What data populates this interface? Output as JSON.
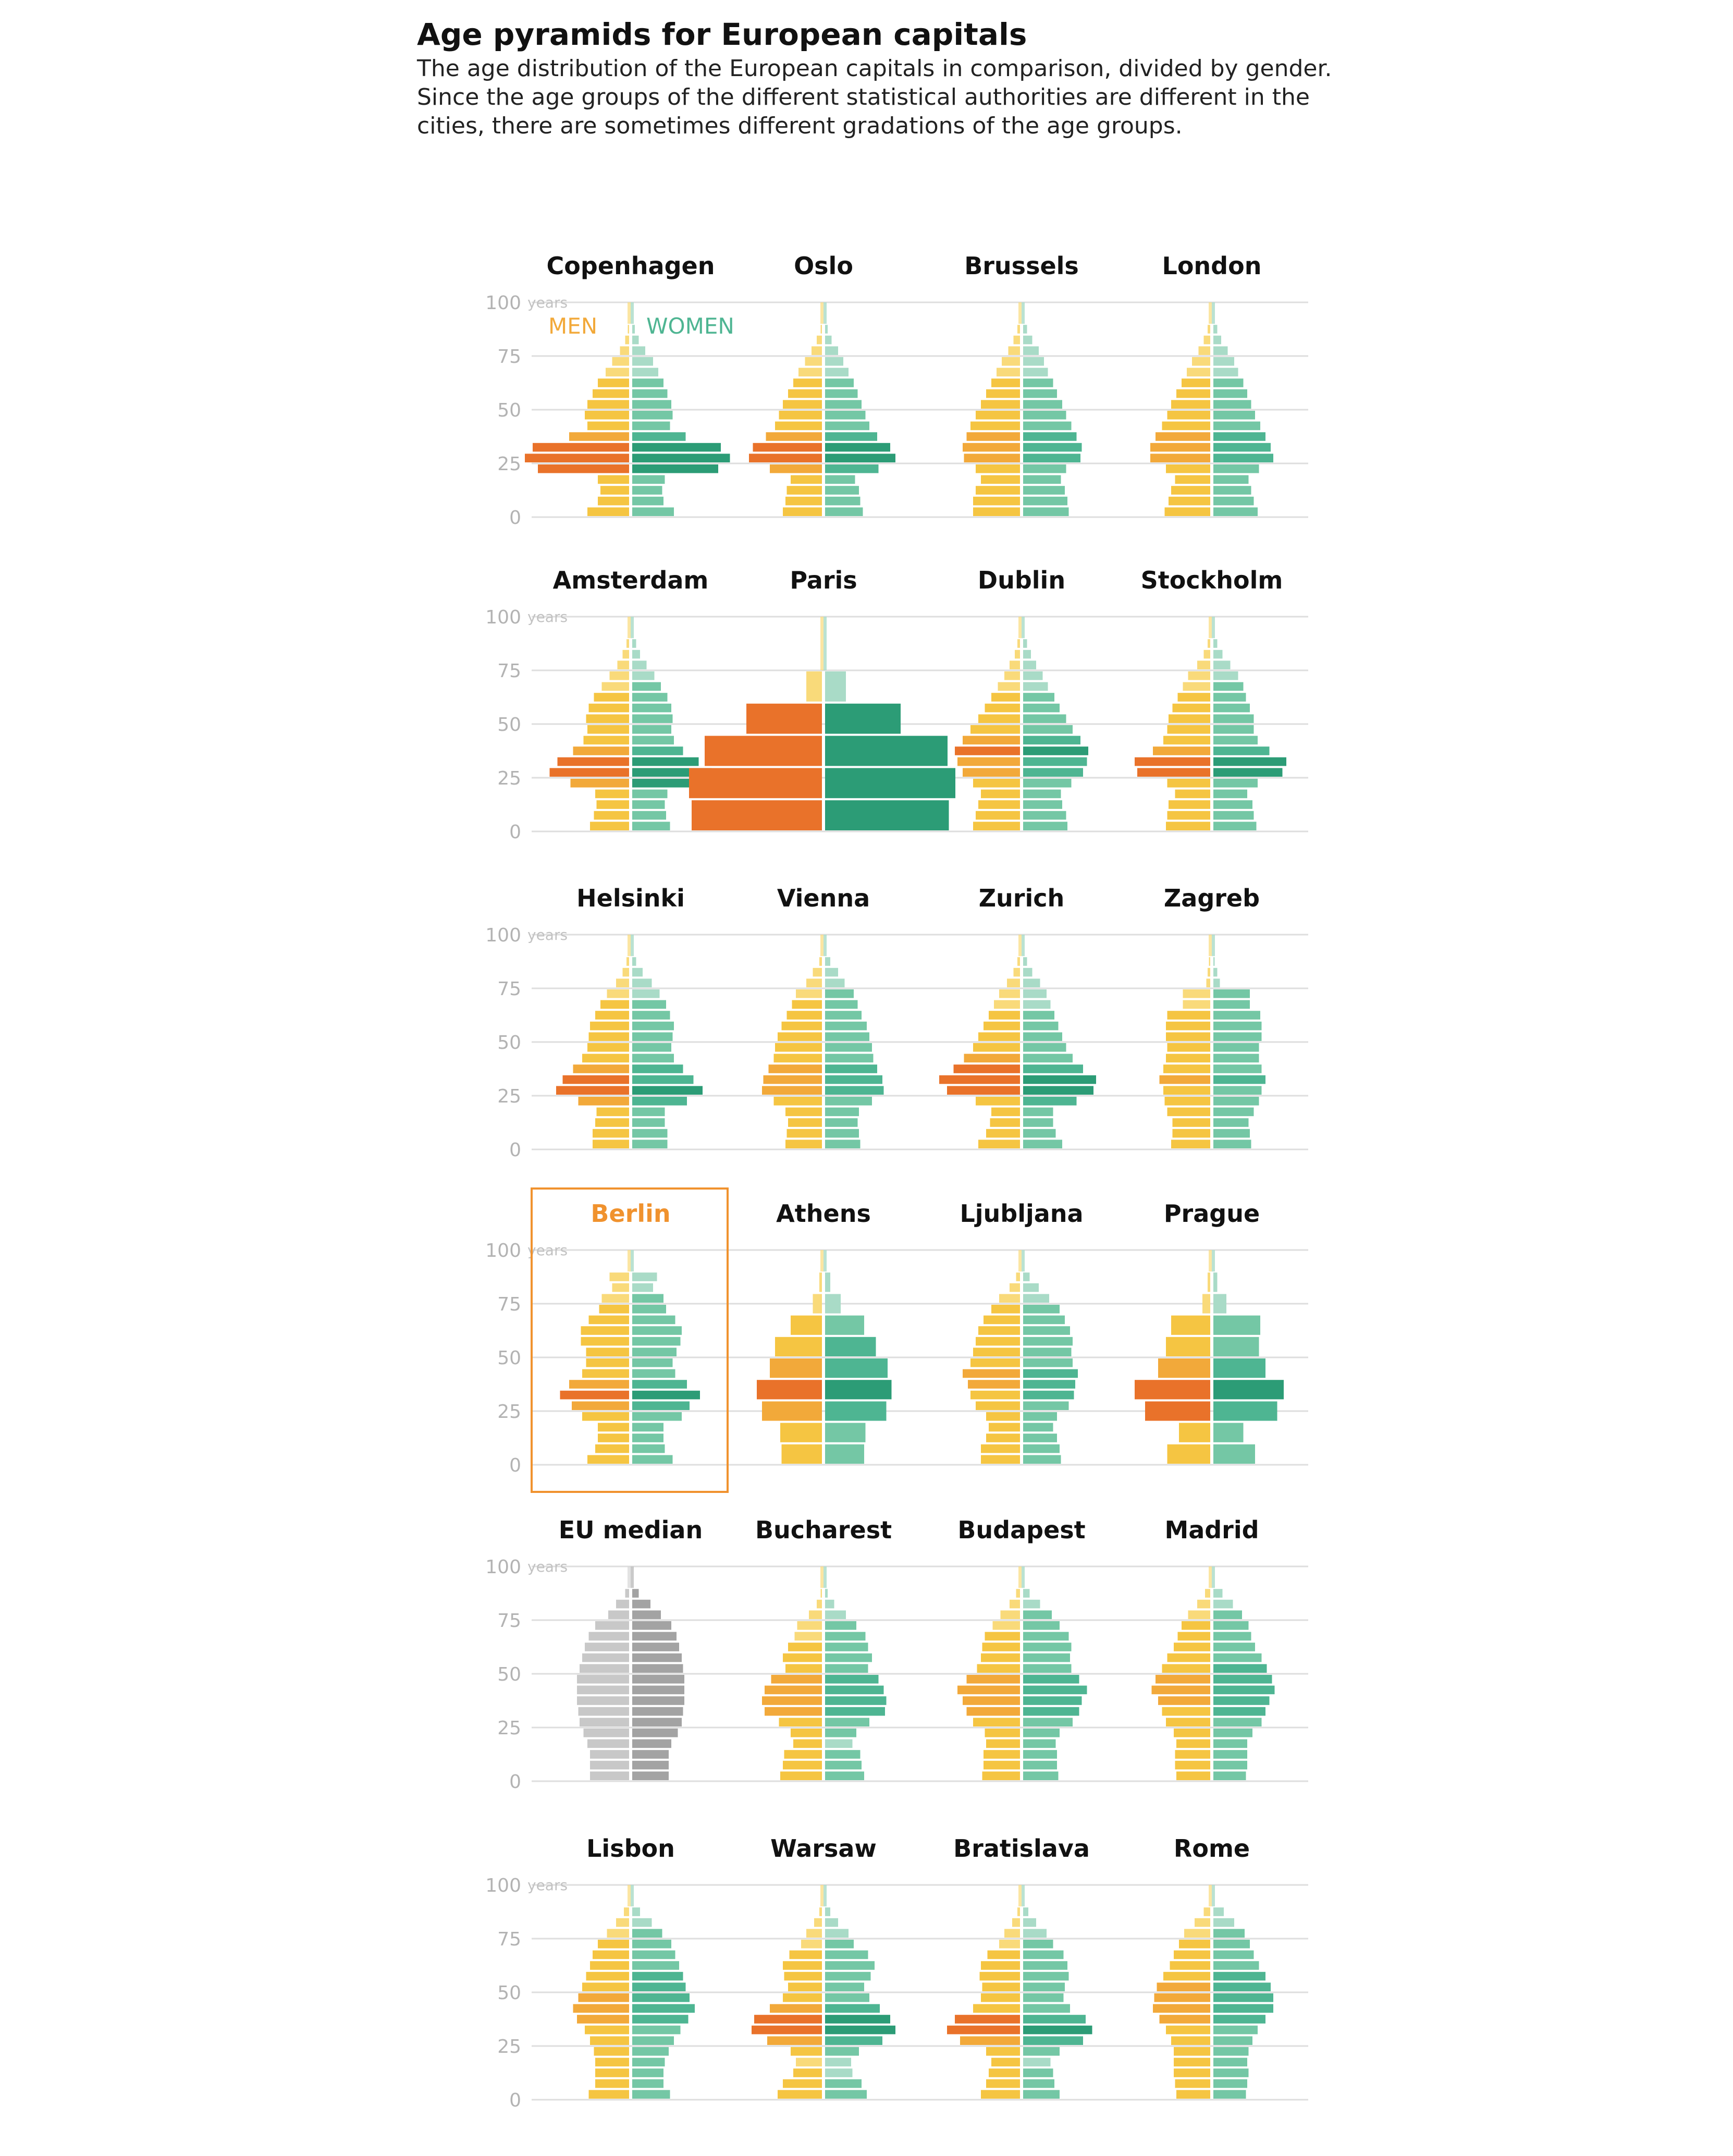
{
  "header": {
    "title": "Age pyramids for European capitals",
    "subtitle": "The age distribution of the European capitals in comparison, divided by gender. Since the age groups of the different statistical authorities are different in the cities, there are sometimes different gradations of the age groups."
  },
  "colors": {
    "men_scale": [
      "#f9da7a",
      "#f5c542",
      "#f2a93a",
      "#e9722a"
    ],
    "women_scale": [
      "#a9dbc7",
      "#74c7a5",
      "#4eb592",
      "#2c9c76"
    ],
    "median_men": "#c8c8c8",
    "median_women": "#a3a3a3",
    "highlight": "#f0922e",
    "grid": "#dedede",
    "axis_text": "#b3b3b3"
  },
  "chart_data": {
    "type": "bar",
    "layout": "small-multiples-population-pyramid",
    "xlabel": "",
    "ylabel": "years",
    "ylim": [
      0,
      100
    ],
    "yticks": [
      0,
      25,
      50,
      75,
      100
    ],
    "legend": {
      "men": "MEN",
      "women": "WOMEN"
    },
    "highlight": "Berlin",
    "panels": [
      {
        "city": "Copenhagen",
        "bin_years": 5,
        "men": [
          3.2,
          2.4,
          2.2,
          2.4,
          7.0,
          8.0,
          7.4,
          4.6,
          3.2,
          3.4,
          3.2,
          2.8,
          2.4,
          1.8,
          1.3,
          0.7,
          0.3,
          0.1
        ],
        "women": [
          3.2,
          2.4,
          2.3,
          2.5,
          6.6,
          7.5,
          6.8,
          4.1,
          2.9,
          3.1,
          3.0,
          2.7,
          2.4,
          2.0,
          1.6,
          1.0,
          0.5,
          0.2
        ]
      },
      {
        "city": "Oslo",
        "bin_years": 5,
        "men": [
          3.0,
          2.8,
          2.7,
          2.4,
          4.0,
          5.6,
          5.3,
          4.3,
          3.6,
          3.3,
          3.0,
          2.6,
          2.2,
          1.8,
          1.3,
          0.8,
          0.4,
          0.1
        ],
        "women": [
          2.9,
          2.7,
          2.6,
          2.3,
          4.1,
          5.4,
          5.0,
          4.0,
          3.4,
          3.1,
          2.8,
          2.5,
          2.2,
          1.8,
          1.4,
          1.0,
          0.5,
          0.2
        ]
      },
      {
        "city": "Brussels",
        "bin_years": 5,
        "men": [
          3.6,
          3.6,
          3.4,
          3.0,
          3.4,
          4.3,
          4.4,
          4.1,
          3.8,
          3.4,
          3.0,
          2.6,
          2.2,
          1.8,
          1.4,
          0.9,
          0.5,
          0.2
        ],
        "women": [
          3.5,
          3.4,
          3.2,
          2.9,
          3.3,
          4.4,
          4.5,
          4.1,
          3.7,
          3.3,
          3.0,
          2.6,
          2.3,
          1.9,
          1.6,
          1.2,
          0.7,
          0.3
        ]
      },
      {
        "city": "London",
        "bin_years": 5,
        "men": [
          3.5,
          3.2,
          3.0,
          2.7,
          3.4,
          4.6,
          4.6,
          4.2,
          3.7,
          3.3,
          3.0,
          2.6,
          2.2,
          1.8,
          1.4,
          0.9,
          0.5,
          0.2
        ],
        "women": [
          3.4,
          3.1,
          2.9,
          2.7,
          3.5,
          4.6,
          4.4,
          4.0,
          3.6,
          3.2,
          2.9,
          2.6,
          2.3,
          1.9,
          1.6,
          1.1,
          0.6,
          0.3
        ]
      },
      {
        "city": "Amsterdam",
        "bin_years": 5,
        "men": [
          3.0,
          2.7,
          2.5,
          2.6,
          4.5,
          6.1,
          5.5,
          4.3,
          3.5,
          3.2,
          3.3,
          3.1,
          2.7,
          2.1,
          1.5,
          0.9,
          0.5,
          0.2
        ],
        "women": [
          2.9,
          2.6,
          2.5,
          2.7,
          5.0,
          6.1,
          5.1,
          3.9,
          3.2,
          3.0,
          3.1,
          3.0,
          2.7,
          2.2,
          1.7,
          1.1,
          0.6,
          0.3
        ]
      },
      {
        "city": "Paris",
        "bin_years": 15,
        "men": [
          10.0,
          10.2,
          9.0,
          5.8,
          1.2
        ],
        "women": [
          9.5,
          10.0,
          9.4,
          5.8,
          1.6
        ]
      },
      {
        "city": "Dublin",
        "bin_years": 5,
        "men": [
          3.6,
          3.4,
          3.2,
          3.0,
          3.6,
          4.4,
          4.8,
          5.0,
          4.4,
          3.8,
          3.2,
          2.7,
          2.2,
          1.7,
          1.2,
          0.8,
          0.4,
          0.2
        ],
        "women": [
          3.4,
          3.3,
          3.0,
          2.9,
          3.7,
          4.6,
          4.9,
          5.0,
          4.4,
          3.8,
          3.3,
          2.8,
          2.4,
          1.9,
          1.5,
          1.0,
          0.6,
          0.3
        ]
      },
      {
        "city": "Stockholm",
        "bin_years": 5,
        "men": [
          3.4,
          3.3,
          3.2,
          2.7,
          3.3,
          5.6,
          5.8,
          4.4,
          3.6,
          3.3,
          3.2,
          2.9,
          2.5,
          2.1,
          1.7,
          1.0,
          0.5,
          0.2
        ],
        "women": [
          3.3,
          3.1,
          3.0,
          2.6,
          3.4,
          5.3,
          5.6,
          4.3,
          3.4,
          3.1,
          3.1,
          2.8,
          2.5,
          2.3,
          1.9,
          1.3,
          0.7,
          0.3
        ]
      },
      {
        "city": "Helsinki",
        "bin_years": 5,
        "men": [
          2.8,
          2.8,
          2.6,
          2.5,
          3.9,
          5.6,
          5.1,
          4.3,
          3.6,
          3.2,
          3.1,
          3.0,
          2.6,
          2.2,
          1.7,
          1.0,
          0.5,
          0.2
        ],
        "women": [
          2.7,
          2.7,
          2.5,
          2.5,
          4.2,
          5.4,
          4.7,
          3.9,
          3.2,
          3.0,
          3.1,
          3.2,
          2.9,
          2.6,
          2.1,
          1.5,
          0.8,
          0.3
        ]
      },
      {
        "city": "Vienna",
        "bin_years": 5,
        "men": [
          2.8,
          2.7,
          2.6,
          2.8,
          3.7,
          4.6,
          4.5,
          4.1,
          3.7,
          3.6,
          3.4,
          3.1,
          2.7,
          2.3,
          2.0,
          1.2,
          0.7,
          0.2
        ],
        "women": [
          2.7,
          2.6,
          2.5,
          2.6,
          3.6,
          4.5,
          4.4,
          4.0,
          3.7,
          3.6,
          3.4,
          3.2,
          2.8,
          2.5,
          2.2,
          1.5,
          1.0,
          0.4
        ]
      },
      {
        "city": "Zurich",
        "bin_years": 5,
        "men": [
          3.2,
          2.6,
          2.3,
          2.2,
          3.4,
          5.6,
          6.2,
          5.1,
          4.3,
          3.6,
          3.2,
          2.8,
          2.4,
          2.0,
          1.6,
          1.0,
          0.5,
          0.2
        ],
        "women": [
          3.0,
          2.5,
          2.3,
          2.3,
          4.1,
          5.4,
          5.6,
          4.6,
          3.8,
          3.3,
          3.0,
          2.7,
          2.4,
          2.1,
          1.8,
          1.3,
          0.7,
          0.3
        ]
      },
      {
        "city": "Zagreb",
        "bin_years": 5,
        "men": [
          3.0,
          2.9,
          2.9,
          3.3,
          3.5,
          3.6,
          3.9,
          3.6,
          3.4,
          3.3,
          3.4,
          3.4,
          3.3,
          2.1,
          2.1,
          0.3,
          0.2,
          0.1
        ],
        "women": [
          2.9,
          2.8,
          2.7,
          3.1,
          3.5,
          3.7,
          4.0,
          3.7,
          3.5,
          3.5,
          3.7,
          3.7,
          3.6,
          2.8,
          2.8,
          0.5,
          0.3,
          0.1
        ]
      },
      {
        "city": "Berlin",
        "bin_years": 5,
        "men": [
          3.2,
          2.6,
          2.4,
          2.4,
          3.6,
          4.4,
          5.3,
          4.6,
          3.6,
          3.3,
          3.3,
          3.7,
          3.7,
          3.1,
          2.3,
          2.1,
          1.3,
          1.5
        ],
        "women": [
          3.1,
          2.5,
          2.4,
          2.4,
          3.8,
          4.4,
          5.2,
          4.2,
          3.3,
          3.1,
          3.4,
          3.7,
          3.8,
          3.3,
          2.6,
          2.4,
          1.6,
          1.9
        ]
      },
      {
        "city": "Athens",
        "bin_years": 10,
        "men": [
          3.1,
          3.2,
          4.6,
          5.0,
          4.0,
          3.6,
          2.4,
          0.7,
          0.2
        ],
        "women": [
          3.0,
          3.1,
          4.7,
          5.1,
          4.8,
          3.9,
          3.0,
          1.2,
          0.4
        ]
      },
      {
        "city": "Ljubljana",
        "bin_years": 5,
        "men": [
          3.0,
          3.0,
          2.6,
          2.4,
          2.6,
          3.4,
          3.8,
          4.0,
          4.4,
          3.8,
          3.6,
          3.4,
          3.2,
          2.8,
          2.2,
          1.6,
          0.8,
          0.3
        ],
        "women": [
          2.9,
          2.8,
          2.6,
          2.3,
          2.6,
          3.5,
          3.9,
          4.0,
          4.2,
          3.8,
          3.7,
          3.8,
          3.6,
          3.2,
          2.8,
          2.0,
          1.2,
          0.5
        ]
      },
      {
        "city": "Prague",
        "bin_years": 10,
        "men": [
          3.3,
          2.4,
          5.0,
          5.8,
          4.0,
          3.4,
          3.0,
          0.6,
          0.2
        ],
        "women": [
          3.2,
          2.3,
          4.9,
          5.4,
          4.0,
          3.5,
          3.6,
          1.0,
          0.3
        ]
      },
      {
        "city": "EU median",
        "bin_years": 5,
        "men": [
          3.0,
          3.0,
          3.0,
          3.2,
          3.5,
          3.8,
          3.9,
          4.0,
          4.0,
          4.0,
          3.8,
          3.6,
          3.4,
          3.1,
          2.6,
          1.6,
          1.0,
          0.3
        ],
        "women": [
          2.8,
          2.8,
          2.8,
          3.0,
          3.5,
          3.8,
          3.9,
          4.0,
          4.0,
          4.0,
          3.9,
          3.8,
          3.6,
          3.4,
          3.0,
          2.2,
          1.4,
          0.5
        ]
      },
      {
        "city": "Bucharest",
        "bin_years": 5,
        "men": [
          3.2,
          3.0,
          2.9,
          2.2,
          2.4,
          3.3,
          4.4,
          4.6,
          4.4,
          3.9,
          2.8,
          3.0,
          2.6,
          2.1,
          1.9,
          1.0,
          0.4,
          0.1
        ],
        "women": [
          3.0,
          2.8,
          2.7,
          2.1,
          2.4,
          3.4,
          4.6,
          4.7,
          4.5,
          4.1,
          3.3,
          3.6,
          3.3,
          3.1,
          2.4,
          1.6,
          0.7,
          0.2
        ]
      },
      {
        "city": "Budapest",
        "bin_years": 5,
        "men": [
          2.9,
          2.8,
          2.8,
          2.6,
          2.7,
          3.6,
          4.1,
          4.4,
          4.8,
          4.1,
          3.3,
          3.0,
          2.9,
          2.7,
          2.1,
          1.5,
          0.8,
          0.3
        ],
        "women": [
          2.7,
          2.6,
          2.6,
          2.5,
          2.8,
          3.8,
          4.3,
          4.5,
          4.9,
          4.3,
          3.7,
          3.6,
          3.7,
          3.5,
          2.8,
          2.2,
          1.3,
          0.5
        ]
      },
      {
        "city": "Madrid",
        "bin_years": 5,
        "men": [
          2.6,
          2.7,
          2.7,
          2.6,
          2.8,
          3.4,
          3.7,
          4.0,
          4.5,
          4.2,
          3.7,
          3.3,
          2.8,
          2.5,
          2.2,
          1.7,
          1.0,
          0.4
        ],
        "women": [
          2.5,
          2.6,
          2.6,
          2.6,
          3.0,
          3.7,
          4.0,
          4.3,
          4.7,
          4.5,
          4.1,
          3.7,
          3.2,
          2.9,
          2.7,
          2.2,
          1.5,
          0.7
        ]
      },
      {
        "city": "Lisbon",
        "bin_years": 5,
        "men": [
          3.1,
          2.6,
          2.6,
          2.6,
          2.7,
          3.0,
          3.4,
          4.0,
          4.3,
          3.9,
          3.6,
          3.3,
          3.0,
          2.8,
          2.4,
          1.7,
          1.0,
          0.4
        ],
        "women": [
          2.9,
          2.4,
          2.4,
          2.5,
          2.8,
          3.2,
          3.7,
          4.3,
          4.8,
          4.4,
          4.1,
          3.9,
          3.6,
          3.3,
          3.0,
          2.3,
          1.5,
          0.6
        ]
      },
      {
        "city": "Warsaw",
        "bin_years": 5,
        "men": [
          3.4,
          3.0,
          2.2,
          2.0,
          2.4,
          4.2,
          5.4,
          5.2,
          4.0,
          3.0,
          2.6,
          2.9,
          3.0,
          2.5,
          1.6,
          1.2,
          0.6,
          0.2
        ],
        "women": [
          3.2,
          2.8,
          2.1,
          2.0,
          2.6,
          4.4,
          5.4,
          5.0,
          4.2,
          3.4,
          3.0,
          3.5,
          3.8,
          3.3,
          2.2,
          1.8,
          1.0,
          0.4
        ]
      },
      {
        "city": "Bratislava",
        "bin_years": 5,
        "men": [
          3.0,
          2.6,
          2.4,
          2.2,
          2.6,
          4.6,
          5.6,
          5.0,
          3.6,
          3.0,
          2.9,
          3.1,
          3.0,
          2.5,
          1.6,
          1.2,
          0.6,
          0.2
        ],
        "women": [
          2.8,
          2.4,
          2.3,
          2.1,
          2.8,
          4.6,
          5.3,
          4.8,
          3.6,
          3.1,
          3.2,
          3.5,
          3.4,
          3.1,
          2.3,
          1.8,
          1.0,
          0.4
        ]
      },
      {
        "city": "Rome",
        "bin_years": 5,
        "men": [
          2.6,
          2.7,
          2.8,
          2.8,
          2.8,
          3.0,
          3.4,
          3.9,
          4.4,
          4.3,
          4.1,
          3.6,
          3.1,
          2.8,
          2.4,
          2.0,
          1.2,
          0.5
        ],
        "women": [
          2.5,
          2.6,
          2.7,
          2.6,
          2.7,
          3.0,
          3.4,
          4.0,
          4.6,
          4.6,
          4.4,
          4.0,
          3.5,
          3.1,
          2.8,
          2.4,
          1.6,
          0.8
        ]
      }
    ]
  }
}
